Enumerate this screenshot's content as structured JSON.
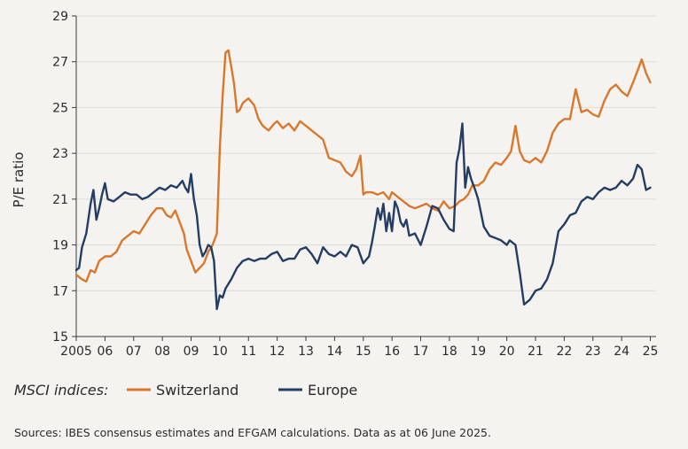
{
  "chart_data": {
    "type": "line",
    "title": "",
    "xlabel": "",
    "ylabel": "P/E ratio",
    "xlim": [
      2005,
      2025.2
    ],
    "ylim": [
      15,
      29
    ],
    "yticks": [
      15,
      17,
      19,
      21,
      23,
      25,
      27,
      29
    ],
    "ytick_labels": [
      "15",
      "17",
      "19",
      "21",
      "23",
      "25",
      "27",
      "29"
    ],
    "xticks": [
      2005,
      2006,
      2007,
      2008,
      2009,
      2010,
      2011,
      2012,
      2013,
      2014,
      2015,
      2016,
      2017,
      2018,
      2019,
      2020,
      2021,
      2022,
      2023,
      2024,
      2025
    ],
    "xtick_labels": [
      "2005",
      "06",
      "07",
      "08",
      "09",
      "10",
      "11",
      "12",
      "13",
      "14",
      "15",
      "16",
      "17",
      "18",
      "19",
      "20",
      "21",
      "22",
      "23",
      "24",
      "25"
    ],
    "legend": {
      "title": "MSCI indices:",
      "position": "bottom-left",
      "entries": [
        "Switzerland",
        "Europe"
      ]
    },
    "source": "Sources: IBES consensus estimates and EFGAM calculations. Data as at 06 June 2025.",
    "series": [
      {
        "name": "Switzerland",
        "color": "#d9782d",
        "x": [
          2005.0,
          2005.2,
          2005.35,
          2005.5,
          2005.65,
          2005.8,
          2006.0,
          2006.2,
          2006.4,
          2006.6,
          2006.8,
          2007.0,
          2007.2,
          2007.4,
          2007.6,
          2007.8,
          2008.0,
          2008.15,
          2008.3,
          2008.45,
          2008.6,
          2008.75,
          2008.85,
          2009.0,
          2009.15,
          2009.3,
          2009.45,
          2009.6,
          2009.75,
          2009.9,
          2010.0,
          2010.1,
          2010.2,
          2010.3,
          2010.4,
          2010.5,
          2010.6,
          2010.7,
          2010.8,
          2011.0,
          2011.2,
          2011.35,
          2011.5,
          2011.7,
          2011.9,
          2012.0,
          2012.2,
          2012.4,
          2012.6,
          2012.8,
          2013.0,
          2013.2,
          2013.4,
          2013.6,
          2013.8,
          2014.0,
          2014.2,
          2014.4,
          2014.6,
          2014.75,
          2014.9,
          2015.0,
          2015.1,
          2015.3,
          2015.5,
          2015.7,
          2015.9,
          2016.0,
          2016.2,
          2016.4,
          2016.6,
          2016.8,
          2017.0,
          2017.2,
          2017.4,
          2017.6,
          2017.8,
          2018.0,
          2018.2,
          2018.35,
          2018.5,
          2018.65,
          2018.8,
          2019.0,
          2019.2,
          2019.4,
          2019.6,
          2019.8,
          2020.0,
          2020.15,
          2020.3,
          2020.45,
          2020.6,
          2020.8,
          2021.0,
          2021.2,
          2021.4,
          2021.6,
          2021.8,
          2022.0,
          2022.2,
          2022.4,
          2022.6,
          2022.8,
          2023.0,
          2023.2,
          2023.4,
          2023.6,
          2023.8,
          2024.0,
          2024.2,
          2024.4,
          2024.55,
          2024.7,
          2024.85,
          2025.0
        ],
        "values": [
          17.7,
          17.5,
          17.4,
          17.9,
          17.8,
          18.3,
          18.5,
          18.5,
          18.7,
          19.2,
          19.4,
          19.6,
          19.5,
          19.9,
          20.3,
          20.6,
          20.6,
          20.3,
          20.2,
          20.5,
          20.0,
          19.5,
          18.8,
          18.3,
          17.8,
          18.0,
          18.2,
          18.7,
          19.0,
          19.5,
          23.2,
          25.5,
          27.4,
          27.5,
          26.8,
          26.0,
          24.8,
          24.9,
          25.2,
          25.4,
          25.1,
          24.5,
          24.2,
          24.0,
          24.3,
          24.4,
          24.1,
          24.3,
          24.0,
          24.4,
          24.2,
          24.0,
          23.8,
          23.6,
          22.8,
          22.7,
          22.6,
          22.2,
          22.0,
          22.3,
          22.9,
          21.2,
          21.3,
          21.3,
          21.2,
          21.3,
          21.0,
          21.3,
          21.1,
          20.9,
          20.7,
          20.6,
          20.7,
          20.8,
          20.6,
          20.5,
          20.9,
          20.6,
          20.7,
          20.9,
          21.0,
          21.2,
          21.6,
          21.6,
          21.8,
          22.3,
          22.6,
          22.5,
          22.8,
          23.1,
          24.2,
          23.1,
          22.7,
          22.6,
          22.8,
          22.6,
          23.1,
          23.9,
          24.3,
          24.5,
          24.5,
          25.8,
          24.8,
          24.9,
          24.7,
          24.6,
          25.3,
          25.8,
          26.0,
          25.7,
          25.5,
          26.1,
          26.6,
          27.1,
          26.5,
          26.1
        ]
      },
      {
        "name": "Europe",
        "color": "#253d63",
        "x": [
          2005.0,
          2005.1,
          2005.2,
          2005.35,
          2005.5,
          2005.6,
          2005.7,
          2005.8,
          2005.9,
          2006.0,
          2006.1,
          2006.3,
          2006.5,
          2006.7,
          2006.9,
          2007.1,
          2007.3,
          2007.5,
          2007.7,
          2007.9,
          2008.1,
          2008.3,
          2008.5,
          2008.7,
          2008.8,
          2008.9,
          2009.0,
          2009.1,
          2009.2,
          2009.3,
          2009.4,
          2009.5,
          2009.6,
          2009.7,
          2009.8,
          2009.9,
          2010.0,
          2010.1,
          2010.2,
          2010.4,
          2010.6,
          2010.8,
          2011.0,
          2011.2,
          2011.4,
          2011.6,
          2011.8,
          2012.0,
          2012.2,
          2012.4,
          2012.6,
          2012.8,
          2013.0,
          2013.2,
          2013.4,
          2013.6,
          2013.8,
          2014.0,
          2014.2,
          2014.4,
          2014.6,
          2014.8,
          2015.0,
          2015.2,
          2015.3,
          2015.4,
          2015.5,
          2015.6,
          2015.7,
          2015.8,
          2015.9,
          2016.0,
          2016.1,
          2016.2,
          2016.3,
          2016.4,
          2016.5,
          2016.6,
          2016.8,
          2017.0,
          2017.2,
          2017.4,
          2017.6,
          2017.8,
          2018.0,
          2018.15,
          2018.25,
          2018.35,
          2018.45,
          2018.55,
          2018.65,
          2018.75,
          2018.9,
          2019.0,
          2019.2,
          2019.4,
          2019.6,
          2019.8,
          2020.0,
          2020.1,
          2020.2,
          2020.3,
          2020.45,
          2020.6,
          2020.8,
          2021.0,
          2021.2,
          2021.4,
          2021.6,
          2021.8,
          2022.0,
          2022.2,
          2022.4,
          2022.6,
          2022.8,
          2023.0,
          2023.2,
          2023.4,
          2023.6,
          2023.8,
          2024.0,
          2024.2,
          2024.4,
          2024.55,
          2024.7,
          2024.85,
          2025.0
        ],
        "values": [
          17.9,
          18.0,
          18.9,
          19.5,
          20.8,
          21.4,
          20.1,
          20.6,
          21.2,
          21.7,
          21.0,
          20.9,
          21.1,
          21.3,
          21.2,
          21.2,
          21.0,
          21.1,
          21.3,
          21.5,
          21.4,
          21.6,
          21.5,
          21.8,
          21.5,
          21.3,
          22.1,
          21.0,
          20.3,
          19.0,
          18.5,
          18.7,
          19.0,
          18.9,
          18.3,
          16.2,
          16.8,
          16.7,
          17.1,
          17.5,
          18.0,
          18.3,
          18.4,
          18.3,
          18.4,
          18.4,
          18.6,
          18.7,
          18.3,
          18.4,
          18.4,
          18.8,
          18.9,
          18.6,
          18.2,
          18.9,
          18.6,
          18.5,
          18.7,
          18.5,
          19.0,
          18.9,
          18.2,
          18.5,
          19.1,
          19.8,
          20.6,
          20.1,
          20.8,
          19.6,
          20.4,
          19.6,
          20.9,
          20.6,
          20.0,
          19.8,
          20.1,
          19.4,
          19.5,
          19.0,
          19.8,
          20.7,
          20.6,
          20.1,
          19.7,
          19.6,
          22.6,
          23.2,
          24.3,
          21.5,
          22.4,
          21.9,
          21.4,
          21.0,
          19.8,
          19.4,
          19.3,
          19.2,
          19.0,
          19.2,
          19.1,
          19.0,
          17.8,
          16.4,
          16.6,
          17.0,
          17.1,
          17.5,
          18.2,
          19.6,
          19.9,
          20.3,
          20.4,
          20.9,
          21.1,
          21.0,
          21.3,
          21.5,
          21.4,
          21.5,
          21.8,
          21.6,
          21.9,
          22.5,
          22.3,
          21.4,
          21.5
        ]
      }
    ]
  }
}
